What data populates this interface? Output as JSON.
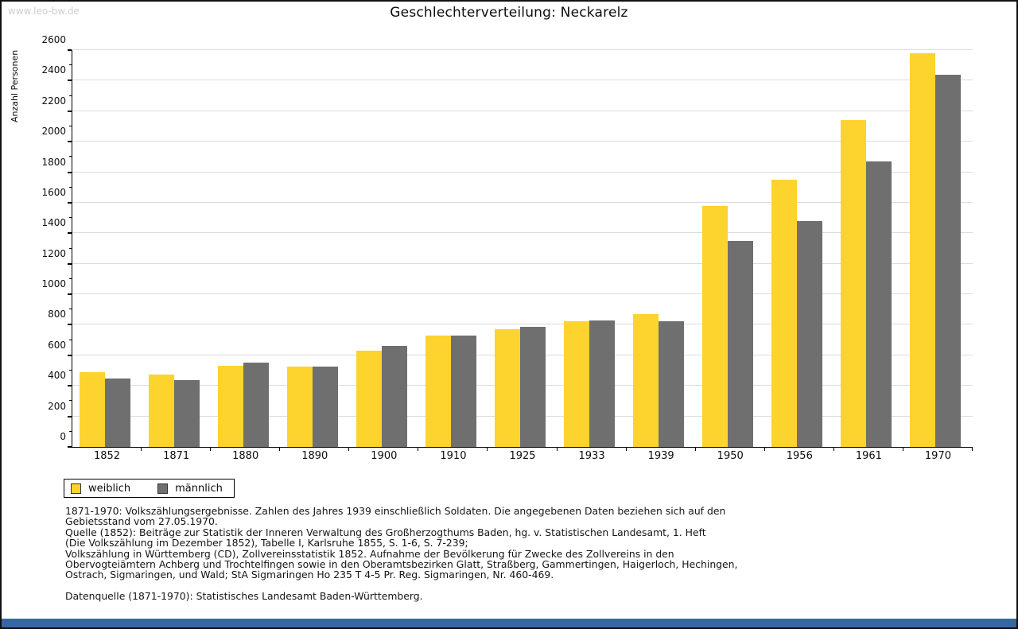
{
  "watermark": "www.leo-bw.de",
  "title": "Geschlechterverteilung: Neckarelz",
  "chart_data": {
    "type": "bar",
    "title": "Geschlechterverteilung: Neckarelz",
    "xlabel": "",
    "ylabel": "Anzahl Personen",
    "ylim": [
      0,
      2600
    ],
    "ytick_step": 200,
    "ytick_minor_step": 100,
    "grid": true,
    "legend_position": "bottom-left",
    "categories": [
      "1852",
      "1871",
      "1880",
      "1890",
      "1900",
      "1910",
      "1925",
      "1933",
      "1939",
      "1950",
      "1956",
      "1961",
      "1970"
    ],
    "series": [
      {
        "name": "weiblich",
        "color": "#FDD32D",
        "values": [
          490,
          475,
          530,
          525,
          630,
          730,
          770,
          825,
          870,
          1580,
          1750,
          2140,
          2580
        ]
      },
      {
        "name": "männlich",
        "color": "#6F6F6F",
        "values": [
          450,
          440,
          550,
          525,
          660,
          728,
          785,
          830,
          825,
          1350,
          1480,
          1870,
          2440
        ]
      }
    ]
  },
  "footnotes": {
    "lines": [
      "1871-1970: Volkszählungsergebnisse. Zahlen des Jahres 1939 einschließlich Soldaten. Die angegebenen Daten beziehen sich auf den",
      "Gebietsstand vom 27.05.1970.",
      "Quelle (1852): Beiträge zur Statistik der Inneren Verwaltung des Großherzogthums Baden, hg. v. Statistischen Landesamt, 1. Heft",
      "(Die Volkszählung im Dezember 1852), Tabelle I, Karlsruhe 1855, S. 1-6, S. 7-239;",
      "Volkszählung in Württemberg (CD), Zollvereinsstatistik 1852. Aufnahme der Bevölkerung für Zwecke des Zollvereins in den",
      "Obervogteiämtern Achberg und Trochtelfingen sowie in den Oberamtsbezirken Glatt, Straßberg, Gammertingen, Haigerloch, Hechingen,",
      "Ostrach, Sigmaringen, und Wald; StA Sigmaringen Ho 235 T 4-5 Pr. Reg. Sigmaringen, Nr. 460-469."
    ],
    "datasource": "Datenquelle (1871-1970): Statistisches Landesamt Baden-Württemberg."
  },
  "colors": {
    "weiblich": "#FDD32D",
    "maennlich": "#6F6F6F",
    "gridline": "#dcdcdc",
    "watermark": "#cfcfcf",
    "bottom_bar": "#3566a8"
  }
}
